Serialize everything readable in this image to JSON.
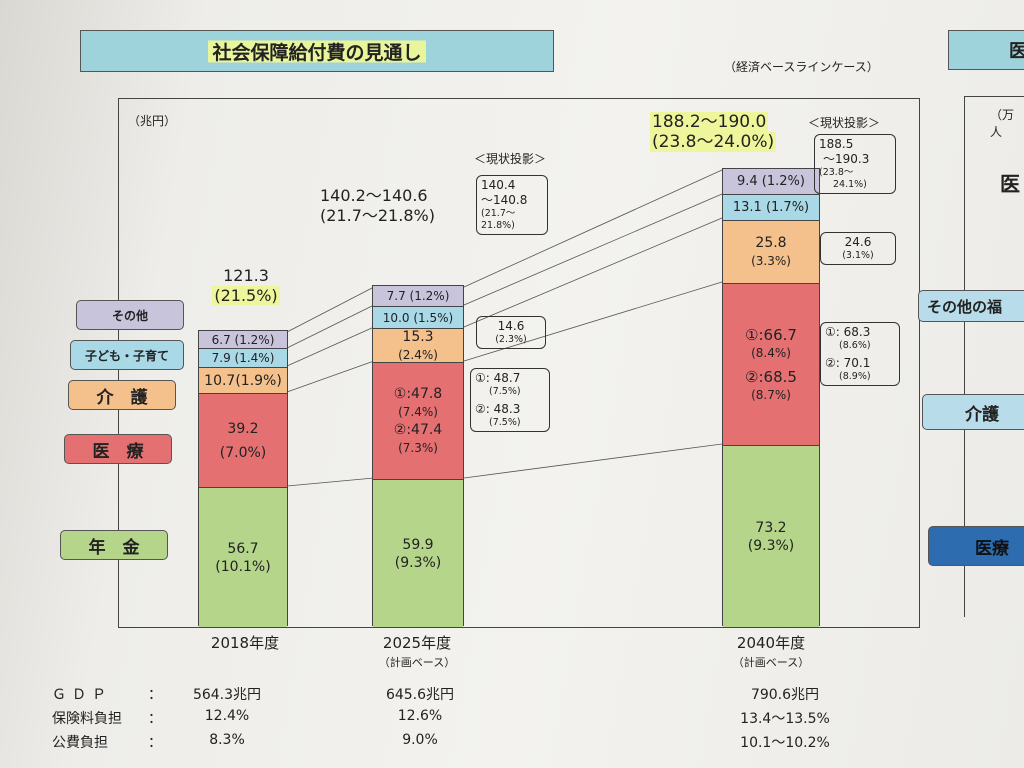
{
  "title": "社会保障給付費の見通し",
  "case_note": "（経済ベースラインケース）",
  "unit": "（兆円）",
  "categories": [
    {
      "label": "その他",
      "color": "#c8c4dc"
    },
    {
      "label": "子ども・子育て",
      "color": "#a9d8e6"
    },
    {
      "label": "介　護",
      "color": "#f4c08c"
    },
    {
      "label": "医　療",
      "color": "#e47071"
    },
    {
      "label": "年　金",
      "color": "#b5d58a"
    }
  ],
  "chart_data": {
    "type": "bar",
    "stacked": true,
    "ylabel": "（兆円）",
    "categories": [
      "2018年度",
      "2025年度",
      "2040年度"
    ],
    "series": [
      {
        "name": "年金",
        "values": [
          56.7,
          59.9,
          73.2
        ],
        "gdp_share": [
          "(10.1%)",
          "(9.3%)",
          "(9.3%)"
        ]
      },
      {
        "name": "医療",
        "values": [
          39.2,
          47.8,
          66.7
        ],
        "gdp_share": [
          "(7.0%)",
          "(7.4%)",
          "(8.4%)"
        ]
      },
      {
        "name": "介護",
        "values": [
          10.7,
          15.3,
          25.8
        ],
        "gdp_share": [
          "(1.9%)",
          "(2.4%)",
          "(3.3%)"
        ]
      },
      {
        "name": "子ども・子育て",
        "values": [
          7.9,
          10.0,
          13.1
        ],
        "gdp_share": [
          "(1.4%)",
          "(1.5%)",
          "(1.7%)"
        ]
      },
      {
        "name": "その他",
        "values": [
          6.7,
          7.7,
          9.4
        ],
        "gdp_share": [
          "(1.2%)",
          "(1.2%)",
          "(1.2%)"
        ]
      }
    ],
    "totals": [
      "121.3",
      "140.2～140.6",
      "188.2～190.0"
    ],
    "total_shares": [
      "(21.5%)",
      "(21.7～21.8%)",
      "(23.8～24.0%)"
    ]
  },
  "bars": {
    "b2018": {
      "year": "2018年度",
      "total": "121.3",
      "total_share": "(21.5%)",
      "pension": {
        "v": "56.7",
        "p": "(10.1%)"
      },
      "medical": {
        "v": "39.2",
        "p": "(7.0%)"
      },
      "care": {
        "line": "10.7(1.9%)"
      },
      "child": {
        "line": "7.9 (1.4%)"
      },
      "other": {
        "line": "6.7 (1.2%)"
      }
    },
    "b2025": {
      "year": "2025年度",
      "sub": "（計画ベース）",
      "total": "140.2～140.6",
      "total_share": "(21.7～21.8%)",
      "pension": {
        "v": "59.9",
        "p": "(9.3%)"
      },
      "medical": {
        "v1": "①:47.8",
        "p1": "(7.4%)",
        "v2": "②:47.4",
        "p2": "(7.3%)"
      },
      "care": {
        "v": "15.3",
        "p": "(2.4%)"
      },
      "child": {
        "line": "10.0 (1.5%)"
      },
      "other": {
        "line": "7.7 (1.2%)"
      }
    },
    "b2040": {
      "year": "2040年度",
      "sub": "（計画ベース）",
      "total": "188.2～190.0",
      "total_share": "(23.8～24.0%)",
      "pension": {
        "v": "73.2",
        "p": "(9.3%)"
      },
      "medical": {
        "v1": "①:66.7",
        "p1": "(8.4%)",
        "v2": "②:68.5",
        "p2": "(8.7%)"
      },
      "care": {
        "v": "25.8",
        "p": "(3.3%)"
      },
      "child": {
        "line": "13.1 (1.7%)"
      },
      "other": {
        "line": "9.4 (1.2%)"
      }
    }
  },
  "projection_2025": {
    "label": "＜現状投影＞",
    "total": {
      "a": "140.4",
      "b": "～140.8",
      "c": "(21.7～",
      "d": "21.8%)"
    },
    "care": {
      "a": "14.6",
      "b": "(2.3%)"
    },
    "medical": {
      "a": "①: 48.7",
      "b": "(7.5%)",
      "c": "②: 48.3",
      "d": "(7.5%)"
    }
  },
  "projection_2040": {
    "label": "＜現状投影＞",
    "total": {
      "a": "188.5",
      "b": "～190.3",
      "c": "(23.8～",
      "d": "24.1%)"
    },
    "care": {
      "a": "24.6",
      "b": "(3.1%)"
    },
    "medical": {
      "a": "①: 68.3",
      "b": "(8.6%)",
      "c": "②: 70.1",
      "d": "(8.9%)"
    }
  },
  "footer": {
    "labels": [
      "ＧＤＰ",
      "保険料負担",
      "公費負担"
    ],
    "colon": "：",
    "y2018": [
      "564.3兆円",
      "12.4%",
      "8.3%"
    ],
    "y2025": [
      "645.6兆円",
      "12.6%",
      "9.0%"
    ],
    "y2040": [
      "790.6兆円",
      "13.4～13.5%",
      "10.1～10.2%"
    ]
  },
  "right_panel": {
    "title": "医",
    "unit": "（万人",
    "other_welfare": "その他の福",
    "care": "介護",
    "medical": "医療",
    "big": "医"
  }
}
